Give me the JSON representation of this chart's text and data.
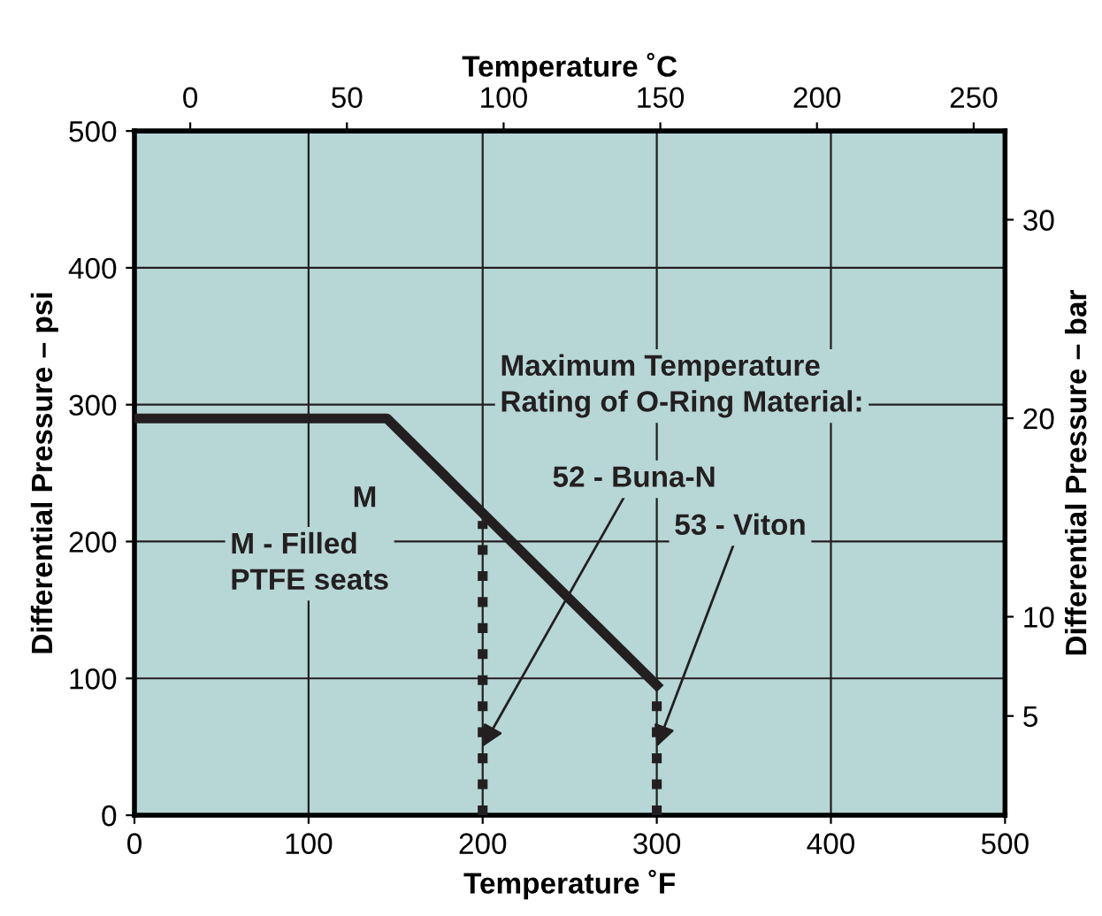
{
  "chart_data": {
    "type": "line",
    "xlabel": "Temperature ˚F",
    "ylabel": "Differential Pressure – psi",
    "x2label": "Temperature ˚C",
    "y2label": "Differential Pressure – bar",
    "xlim": [
      0,
      500
    ],
    "xticks": [
      0,
      100,
      200,
      300,
      400,
      500
    ],
    "ylim": [
      0,
      500
    ],
    "yticks": [
      0,
      100,
      200,
      300,
      400,
      500
    ],
    "x2lim": [
      -17.8,
      260
    ],
    "x2ticks": [
      0,
      50,
      100,
      150,
      200,
      250
    ],
    "y2lim": [
      0,
      34.47
    ],
    "y2ticks": [
      5,
      10,
      20,
      30
    ],
    "grid": true,
    "marker": "none",
    "series": [
      {
        "name": "M",
        "x": [
          0,
          145,
          300
        ],
        "values": [
          290,
          290,
          95
        ],
        "color": "#231f20",
        "line_style": "solid"
      },
      {
        "x": [
          200,
          200
        ],
        "values": [
          0,
          215
        ],
        "color": "#231f20",
        "line_style": "dotted"
      },
      {
        "x": [
          300,
          300
        ],
        "values": [
          0,
          95
        ],
        "color": "#231f20",
        "line_style": "dotted"
      }
    ],
    "annotations": [
      "M - Filled\nPTFE seats",
      "Maximum Temperature\nRating of O-Ring Material:",
      {
        "text": "52 - Buna-N",
        "x": 200,
        "y": 50
      },
      {
        "text": "53 - Viton",
        "x": 300,
        "y": 50
      }
    ]
  }
}
